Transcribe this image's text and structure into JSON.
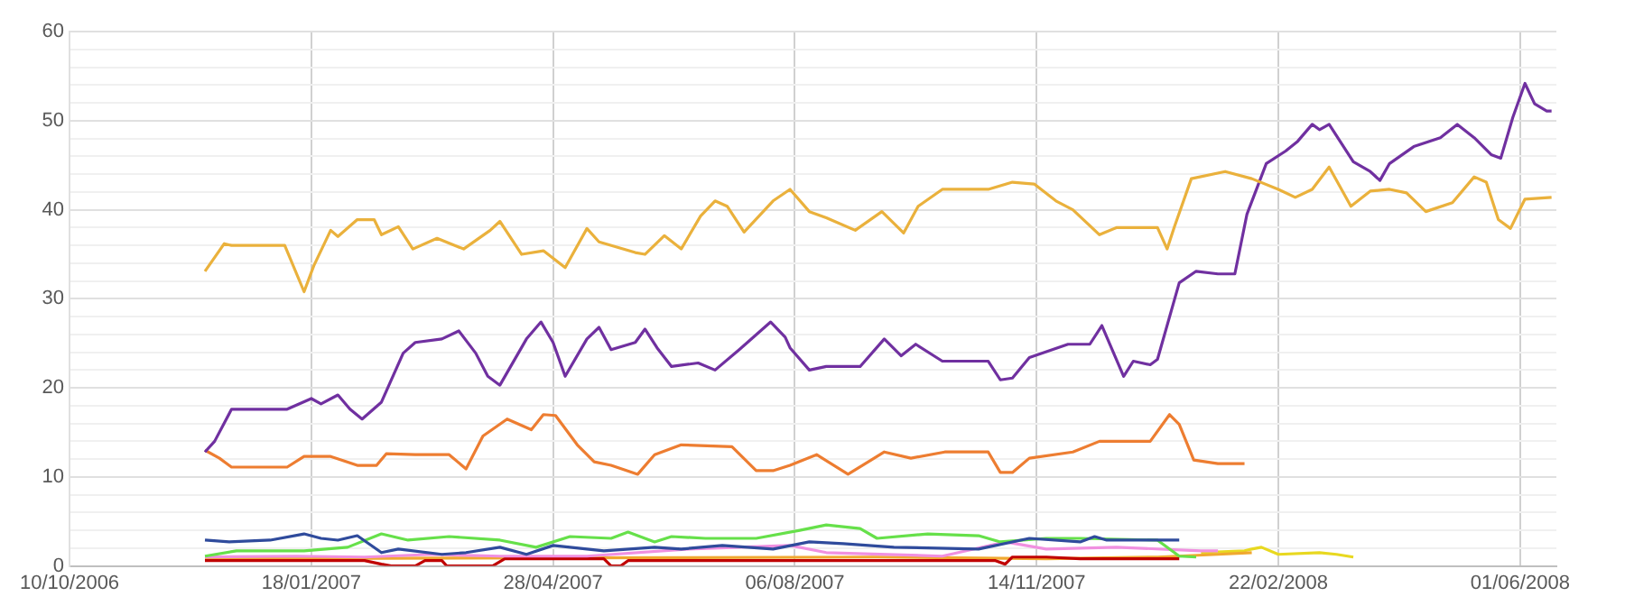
{
  "chart_data": {
    "type": "line",
    "xlim": [
      "2006-10-10",
      "2008-06-16"
    ],
    "xticks": [
      {
        "value": "2006-10-10",
        "label": "10/10/2006"
      },
      {
        "value": "2007-01-18",
        "label": "18/01/2007"
      },
      {
        "value": "2007-04-28",
        "label": "28/04/2007"
      },
      {
        "value": "2007-08-06",
        "label": "06/08/2007"
      },
      {
        "value": "2007-11-14",
        "label": "14/11/2007"
      },
      {
        "value": "2008-02-22",
        "label": "22/02/2008"
      },
      {
        "value": "2008-06-01",
        "label": "01/06/2008"
      }
    ],
    "ylim": [
      0,
      60
    ],
    "yticks": [
      0,
      {
        "value": 2,
        "label": null
      },
      {
        "value": 4,
        "label": null
      },
      {
        "value": 6,
        "label": null
      },
      {
        "value": 8,
        "label": null
      },
      10,
      {
        "value": 12,
        "label": null
      },
      {
        "value": 14,
        "label": null
      },
      {
        "value": 16,
        "label": null
      },
      {
        "value": 18,
        "label": null
      },
      20,
      {
        "value": 22,
        "label": null
      },
      {
        "value": 24,
        "label": null
      },
      {
        "value": 26,
        "label": null
      },
      {
        "value": 28,
        "label": null
      },
      30,
      {
        "value": 32,
        "label": null
      },
      {
        "value": 34,
        "label": null
      },
      {
        "value": 36,
        "label": null
      },
      {
        "value": 38,
        "label": null
      },
      40,
      {
        "value": 42,
        "label": null
      },
      {
        "value": 44,
        "label": null
      },
      {
        "value": 46,
        "label": null
      },
      {
        "value": 48,
        "label": null
      },
      50,
      {
        "value": 52,
        "label": null
      },
      {
        "value": 54,
        "label": null
      },
      {
        "value": 56,
        "label": null
      },
      {
        "value": 58,
        "label": null
      },
      60
    ],
    "grid": true,
    "legend": false,
    "marker": "none",
    "line_style": "solid",
    "series": [
      {
        "color": "#eab13c",
        "x": [
          "2006-12-05",
          "2006-12-13",
          "2006-12-16",
          "2007-01-07",
          "2007-01-15",
          "2007-01-19",
          "2007-01-26",
          "2007-01-29",
          "2007-02-06",
          "2007-02-13",
          "2007-02-16",
          "2007-02-23",
          "2007-03-01",
          "2007-03-11",
          "2007-03-22",
          "2007-04-02",
          "2007-04-06",
          "2007-04-15",
          "2007-04-24",
          "2007-05-03",
          "2007-05-12",
          "2007-05-17",
          "2007-06-01",
          "2007-06-05",
          "2007-06-13",
          "2007-06-20",
          "2007-06-28",
          "2007-07-04",
          "2007-07-09",
          "2007-07-16",
          "2007-07-28",
          "2007-08-04",
          "2007-08-12",
          "2007-08-19",
          "2007-08-31",
          "2007-09-11",
          "2007-09-20",
          "2007-09-26",
          "2007-10-06",
          "2007-10-25",
          "2007-11-04",
          "2007-11-13",
          "2007-11-22",
          "2007-11-29",
          "2007-12-10",
          "2007-12-17",
          "2008-01-03",
          "2008-01-07",
          "2008-01-10",
          "2008-01-17",
          "2008-01-31",
          "2008-02-11",
          "2008-02-22",
          "2008-02-29",
          "2008-03-07",
          "2008-03-14",
          "2008-03-23",
          "2008-03-31",
          "2008-04-08",
          "2008-04-15",
          "2008-04-23",
          "2008-05-04",
          "2008-05-13",
          "2008-05-18",
          "2008-05-23",
          "2008-05-28",
          "2008-06-03",
          "2008-06-14"
        ],
        "values": [
          33.1,
          36.2,
          36,
          36,
          30.8,
          33.7,
          37.7,
          37,
          38.9,
          38.9,
          37.2,
          38.1,
          35.6,
          36.8,
          35.6,
          37.7,
          38.7,
          35,
          35.4,
          33.5,
          37.9,
          36.4,
          35.2,
          35,
          37.1,
          35.6,
          39.3,
          41,
          40.4,
          37.5,
          41,
          42.3,
          39.8,
          39.1,
          37.7,
          39.8,
          37.4,
          40.4,
          42.3,
          42.3,
          43.1,
          42.9,
          41,
          40,
          37.2,
          38,
          38,
          35.6,
          38.1,
          43.5,
          44.3,
          43.5,
          42.3,
          41.4,
          42.3,
          44.8,
          40.4,
          42.1,
          42.3,
          41.9,
          39.8,
          40.8,
          43.7,
          43.1,
          38.9,
          37.9,
          41.2,
          41.4
        ]
      },
      {
        "color": "#7030a0",
        "x": [
          "2006-12-05",
          "2006-12-09",
          "2006-12-16",
          "2007-01-08",
          "2007-01-18",
          "2007-01-22",
          "2007-01-29",
          "2007-02-03",
          "2007-02-08",
          "2007-02-16",
          "2007-02-25",
          "2007-03-02",
          "2007-03-13",
          "2007-03-20",
          "2007-03-27",
          "2007-04-01",
          "2007-04-06",
          "2007-04-17",
          "2007-04-23",
          "2007-04-28",
          "2007-05-03",
          "2007-05-12",
          "2007-05-17",
          "2007-05-22",
          "2007-06-01",
          "2007-06-05",
          "2007-06-10",
          "2007-06-16",
          "2007-06-27",
          "2007-07-04",
          "2007-07-14",
          "2007-07-27",
          "2007-08-02",
          "2007-08-04",
          "2007-08-12",
          "2007-08-19",
          "2007-09-02",
          "2007-09-12",
          "2007-09-19",
          "2007-09-25",
          "2007-10-06",
          "2007-10-25",
          "2007-10-30",
          "2007-11-04",
          "2007-11-11",
          "2007-11-27",
          "2007-12-06",
          "2007-12-11",
          "2007-12-20",
          "2007-12-24",
          "2007-12-31",
          "2008-01-03",
          "2008-01-12",
          "2008-01-19",
          "2008-01-28",
          "2008-02-04",
          "2008-02-09",
          "2008-02-17",
          "2008-02-25",
          "2008-03-01",
          "2008-03-07",
          "2008-03-10",
          "2008-03-14",
          "2008-03-24",
          "2008-03-31",
          "2008-04-04",
          "2008-04-08",
          "2008-04-18",
          "2008-04-29",
          "2008-05-06",
          "2008-05-13",
          "2008-05-20",
          "2008-05-24",
          "2008-05-29",
          "2008-06-03",
          "2008-06-07",
          "2008-06-12",
          "2008-06-14"
        ],
        "values": [
          12.8,
          14,
          17.6,
          17.6,
          18.8,
          18.2,
          19.2,
          17.6,
          16.5,
          18.4,
          23.9,
          25.1,
          25.5,
          26.4,
          23.9,
          21.3,
          20.3,
          25.5,
          27.4,
          25.1,
          21.3,
          25.5,
          26.8,
          24.3,
          25.1,
          26.6,
          24.5,
          22.4,
          22.8,
          22,
          24.3,
          27.4,
          25.7,
          24.5,
          22,
          22.4,
          22.4,
          25.5,
          23.6,
          24.9,
          23,
          23,
          20.9,
          21.1,
          23.4,
          24.9,
          24.9,
          27,
          21.3,
          23,
          22.6,
          23.2,
          31.8,
          33.1,
          32.8,
          32.8,
          39.5,
          45.2,
          46.6,
          47.7,
          49.6,
          49,
          49.6,
          45.4,
          44.3,
          43.3,
          45.2,
          47.1,
          48.1,
          49.6,
          48.1,
          46.2,
          45.8,
          50.4,
          54.2,
          51.9,
          51.1,
          51.1
        ]
      },
      {
        "color": "#ed7d31",
        "x": [
          "2006-12-05",
          "2006-12-11",
          "2006-12-16",
          "2007-01-08",
          "2007-01-15",
          "2007-01-26",
          "2007-02-06",
          "2007-02-14",
          "2007-02-18",
          "2007-03-02",
          "2007-03-16",
          "2007-03-23",
          "2007-03-30",
          "2007-04-09",
          "2007-04-19",
          "2007-04-24",
          "2007-04-29",
          "2007-05-08",
          "2007-05-15",
          "2007-05-22",
          "2007-06-02",
          "2007-06-09",
          "2007-06-20",
          "2007-07-11",
          "2007-07-21",
          "2007-07-28",
          "2007-08-04",
          "2007-08-15",
          "2007-08-28",
          "2007-09-12",
          "2007-09-23",
          "2007-10-07",
          "2007-10-25",
          "2007-10-30",
          "2007-11-04",
          "2007-11-11",
          "2007-11-29",
          "2007-12-10",
          "2007-12-24",
          "2007-12-31",
          "2008-01-08",
          "2008-01-12",
          "2008-01-18",
          "2008-01-28",
          "2008-02-08"
        ],
        "values": [
          13,
          12.1,
          11.1,
          11.1,
          12.3,
          12.3,
          11.3,
          11.3,
          12.6,
          12.5,
          12.5,
          10.9,
          14.6,
          16.5,
          15.3,
          17,
          16.9,
          13.6,
          11.7,
          11.3,
          10.3,
          12.5,
          13.6,
          13.4,
          10.7,
          10.7,
          11.3,
          12.5,
          10.3,
          12.8,
          12.1,
          12.8,
          12.8,
          10.5,
          10.5,
          12.1,
          12.8,
          14,
          14,
          14,
          17,
          15.9,
          11.9,
          11.5,
          11.5
        ]
      },
      {
        "color": "#2f4b9c",
        "x": [
          "2006-12-05",
          "2006-12-15",
          "2007-01-01",
          "2007-01-15",
          "2007-01-22",
          "2007-01-29",
          "2007-02-06",
          "2007-02-16",
          "2007-02-23",
          "2007-03-13",
          "2007-03-23",
          "2007-04-06",
          "2007-04-17",
          "2007-04-28",
          "2007-05-19",
          "2007-06-09",
          "2007-06-20",
          "2007-07-07",
          "2007-07-28",
          "2007-08-12",
          "2007-08-26",
          "2007-09-16",
          "2007-10-21",
          "2007-11-11",
          "2007-12-02",
          "2007-12-08",
          "2007-12-13",
          "2008-01-12"
        ],
        "values": [
          2.9,
          2.7,
          2.9,
          3.6,
          3.1,
          2.9,
          3.4,
          1.5,
          1.9,
          1.3,
          1.5,
          2.1,
          1.3,
          2.3,
          1.7,
          2.1,
          1.9,
          2.3,
          1.9,
          2.7,
          2.5,
          2.1,
          1.9,
          3.1,
          2.7,
          3.3,
          2.9,
          2.9
        ]
      },
      {
        "color": "#66e04a",
        "x": [
          "2006-12-05",
          "2006-12-18",
          "2007-01-15",
          "2007-02-02",
          "2007-02-16",
          "2007-02-27",
          "2007-03-16",
          "2007-04-06",
          "2007-04-21",
          "2007-05-05",
          "2007-05-22",
          "2007-05-29",
          "2007-06-09",
          "2007-06-16",
          "2007-06-30",
          "2007-07-21",
          "2007-08-08",
          "2007-08-19",
          "2007-09-02",
          "2007-09-09",
          "2007-09-30",
          "2007-10-21",
          "2007-10-30",
          "2007-11-18",
          "2007-12-02",
          "2008-01-03",
          "2008-01-12",
          "2008-01-19"
        ],
        "values": [
          1.1,
          1.7,
          1.7,
          2.1,
          3.6,
          2.9,
          3.3,
          2.9,
          2.1,
          3.3,
          3.1,
          3.8,
          2.7,
          3.3,
          3.1,
          3.1,
          4,
          4.6,
          4.2,
          3.1,
          3.6,
          3.4,
          2.7,
          3.1,
          3.1,
          2.9,
          1.1,
          1
        ]
      },
      {
        "color": "#f090e0",
        "x": [
          "2006-12-05",
          "2007-01-12",
          "2007-02-09",
          "2007-03-09",
          "2007-04-06",
          "2007-05-12",
          "2007-06-23",
          "2007-07-14",
          "2007-08-04",
          "2007-08-19",
          "2007-10-06",
          "2007-11-01",
          "2007-11-18",
          "2007-12-17",
          "2008-01-21",
          "2008-01-28"
        ],
        "values": [
          1,
          1.1,
          1,
          1.3,
          1.1,
          1.1,
          1.9,
          2.1,
          2.3,
          1.5,
          1.1,
          2.7,
          1.9,
          2.1,
          1.7,
          1.7
        ]
      },
      {
        "color": "#c00000",
        "x": [
          "2006-12-05",
          "2007-02-09",
          "2007-02-16",
          "2007-02-20",
          "2007-03-02",
          "2007-03-06",
          "2007-03-13",
          "2007-03-15",
          "2007-04-03",
          "2007-04-08",
          "2007-05-19",
          "2007-05-22",
          "2007-05-26",
          "2007-05-29",
          "2007-08-04",
          "2007-10-28",
          "2007-11-01",
          "2007-11-04",
          "2007-11-18",
          "2007-12-02",
          "2008-01-12"
        ],
        "values": [
          0.6,
          0.6,
          0.2,
          0,
          0,
          0.6,
          0.6,
          0,
          0,
          0.8,
          0.8,
          0,
          0,
          0.6,
          0.6,
          0.6,
          0.2,
          1,
          1,
          0.8,
          0.8
        ]
      },
      {
        "color": "#f0a830",
        "x": [
          "2006-12-05",
          "2007-09-09",
          "2007-11-18",
          "2008-01-03",
          "2008-01-28",
          "2008-02-11"
        ],
        "values": [
          0.8,
          1,
          0.8,
          1,
          1.3,
          1.5
        ]
      },
      {
        "color": "#e8d820",
        "x": [
          "2008-01-21",
          "2008-02-08",
          "2008-02-11",
          "2008-02-15",
          "2008-02-22",
          "2008-03-10",
          "2008-03-17",
          "2008-03-24"
        ],
        "values": [
          1.5,
          1.7,
          1.9,
          2.1,
          1.3,
          1.5,
          1.3,
          1
        ]
      }
    ]
  }
}
